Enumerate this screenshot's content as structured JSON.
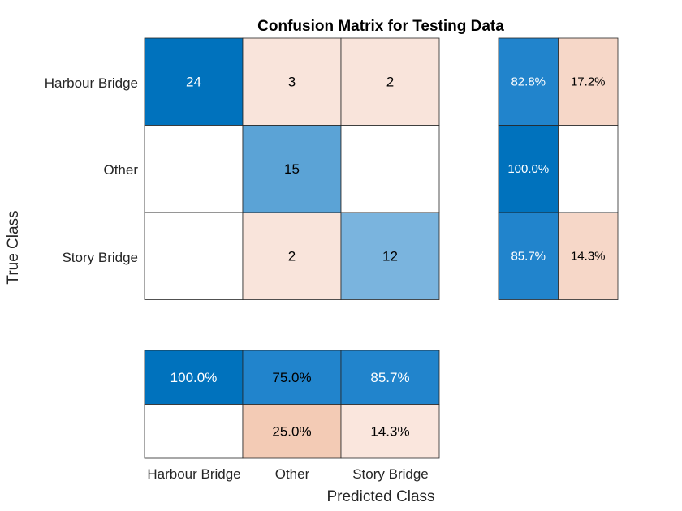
{
  "chart_data": {
    "type": "heatmap",
    "title": "Confusion Matrix for Testing Data",
    "xlabel": "Predicted Class",
    "ylabel": "True Class",
    "classes": [
      "Harbour Bridge",
      "Other",
      "Story Bridge"
    ],
    "matrix": [
      [
        24,
        3,
        2
      ],
      [
        0,
        15,
        0
      ],
      [
        0,
        2,
        12
      ]
    ],
    "row_summary": [
      [
        "82.8%",
        "17.2%"
      ],
      [
        "100.0%",
        ""
      ],
      [
        "85.7%",
        "14.3%"
      ]
    ],
    "column_summary": [
      [
        "100.0%",
        "75.0%",
        "85.7%"
      ],
      [
        "",
        "25.0%",
        "14.3%"
      ]
    ],
    "colors": {
      "diag_max": "#0072bd",
      "diag_mid": "#5ba3d6",
      "diag_low": "#7ab4de",
      "off_low": "#f9e4db",
      "off_mid": "#f4d0bf",
      "summary_good": "#2184cc",
      "summary_best": "#0072bd",
      "summary_bad": "#f6d7c8",
      "summary_bad_mid": "#f3cbb5",
      "summary_bad_low": "#fae6dd",
      "empty": "#ffffff"
    }
  }
}
